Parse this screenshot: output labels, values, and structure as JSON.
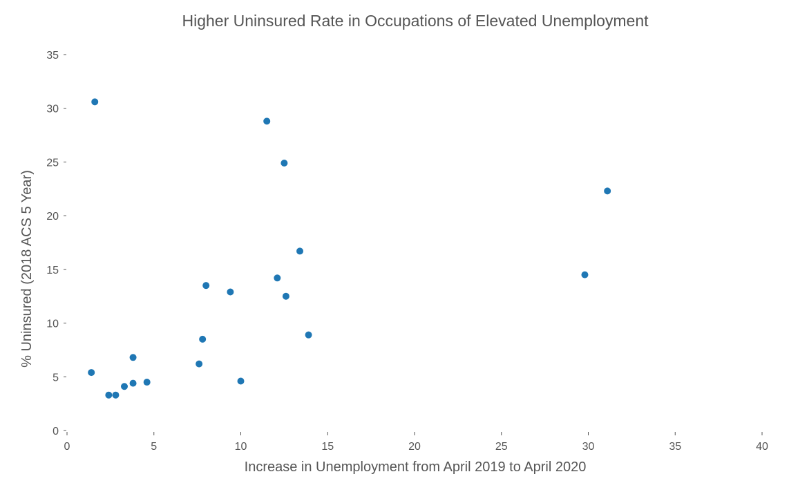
{
  "chart_data": {
    "type": "scatter",
    "title": "Higher Uninsured Rate in Occupations of Elevated Unemployment",
    "xlabel": "Increase in Unemployment from April 2019 to April 2020",
    "ylabel": "% Uninsured (2018 ACS 5 Year)",
    "xlim": [
      0,
      40
    ],
    "ylim": [
      0,
      35
    ],
    "xticks": [
      0,
      5,
      10,
      15,
      20,
      25,
      30,
      35,
      40
    ],
    "yticks": [
      0,
      5,
      10,
      15,
      20,
      25,
      30,
      35
    ],
    "grid": false,
    "color": "#1f77b4",
    "points": [
      {
        "x": 1.6,
        "y": 30.6
      },
      {
        "x": 1.4,
        "y": 5.4
      },
      {
        "x": 2.4,
        "y": 3.3
      },
      {
        "x": 2.8,
        "y": 3.3
      },
      {
        "x": 3.3,
        "y": 4.1
      },
      {
        "x": 3.8,
        "y": 4.4
      },
      {
        "x": 3.8,
        "y": 6.8
      },
      {
        "x": 4.6,
        "y": 4.5
      },
      {
        "x": 7.6,
        "y": 6.2
      },
      {
        "x": 7.8,
        "y": 8.5
      },
      {
        "x": 8.0,
        "y": 13.5
      },
      {
        "x": 9.4,
        "y": 12.9
      },
      {
        "x": 10.0,
        "y": 4.6
      },
      {
        "x": 11.5,
        "y": 28.8
      },
      {
        "x": 12.1,
        "y": 14.2
      },
      {
        "x": 12.5,
        "y": 24.9
      },
      {
        "x": 12.6,
        "y": 12.5
      },
      {
        "x": 13.4,
        "y": 16.7
      },
      {
        "x": 13.9,
        "y": 8.9
      },
      {
        "x": 29.8,
        "y": 14.5
      },
      {
        "x": 31.1,
        "y": 22.3
      }
    ]
  }
}
